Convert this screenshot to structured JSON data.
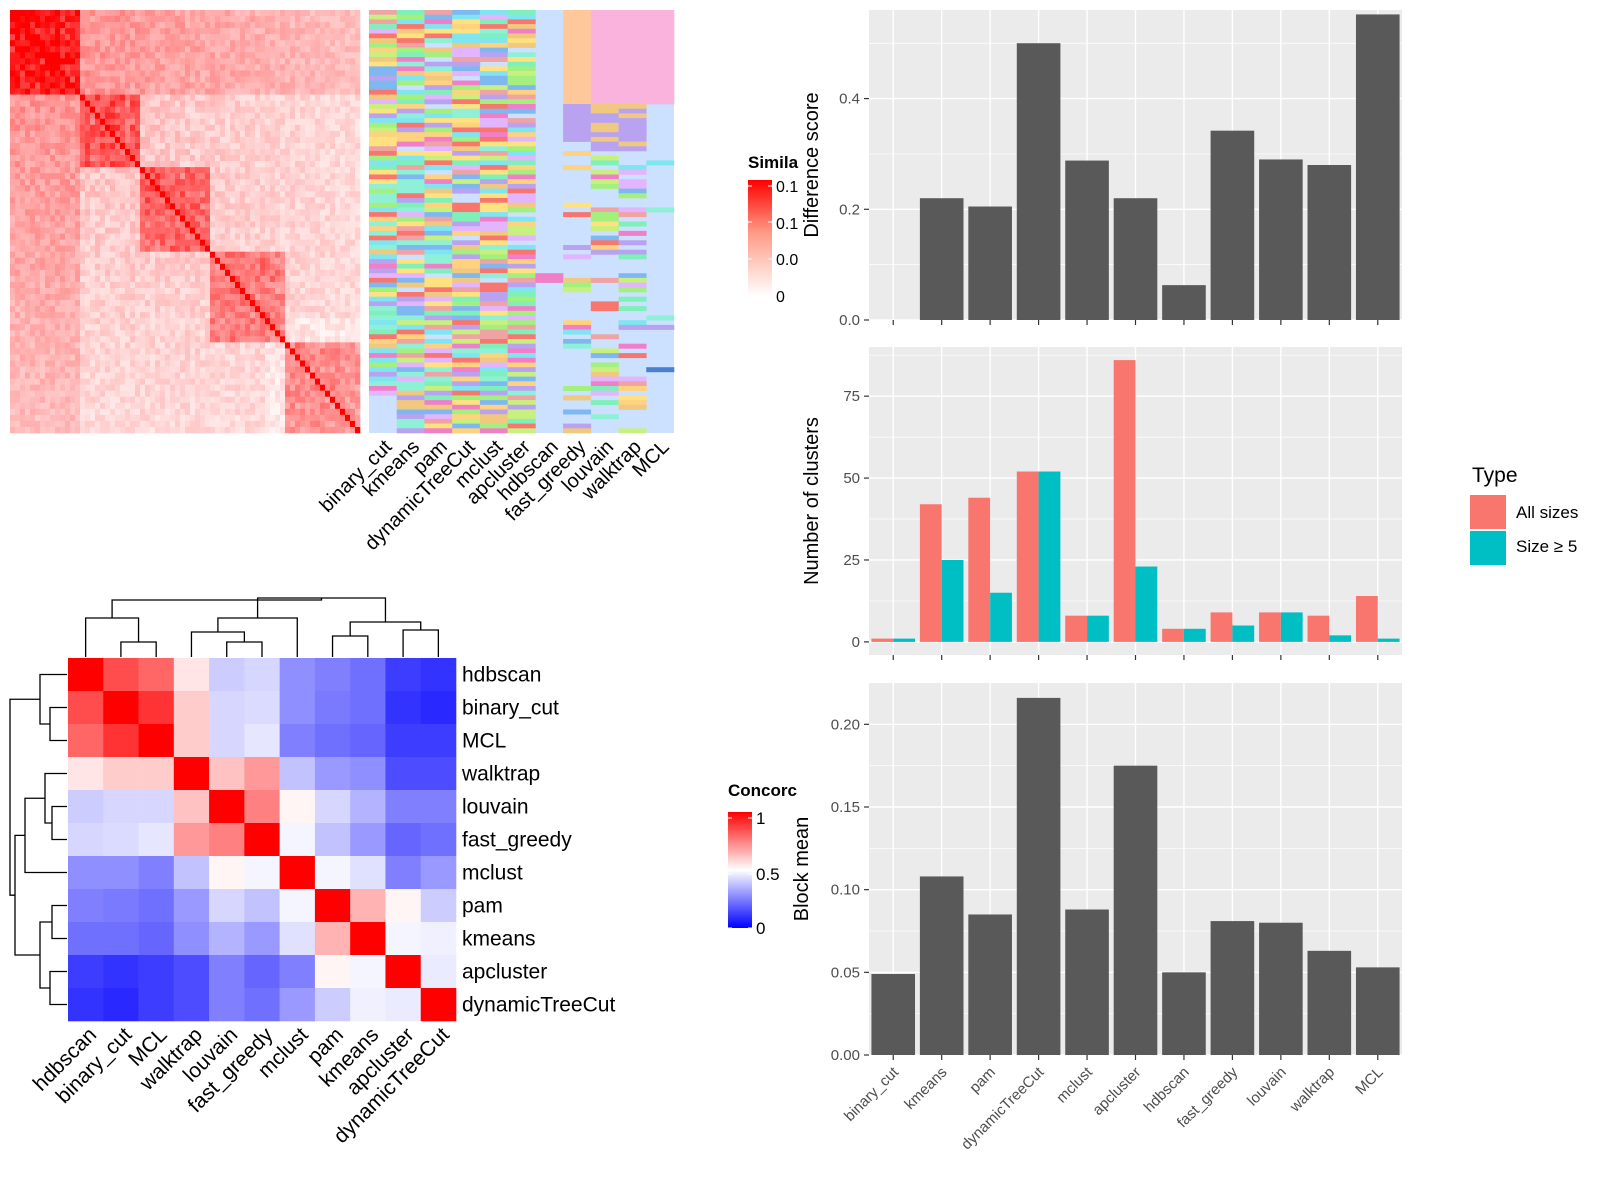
{
  "colors": {
    "panel_bg": "#ebebeb",
    "grid": "#ffffff",
    "bar_dark": "#595959",
    "all_sizes": "#f8766d",
    "size5": "#00bfc4",
    "heat_high": "#ff0000",
    "heat_low": "#ffffff",
    "conc_low": "#0000ff",
    "conc_mid": "#ffffff",
    "conc_high": "#ff0000",
    "anno_bg": "#cce0ff"
  },
  "legends": {
    "similarity_title": "Simila",
    "similarity_ticks": [
      "0.1",
      "0.1",
      "0.0",
      "0"
    ],
    "concordance_title": "Concorc",
    "concordance_ticks": [
      "1",
      "0.5",
      "0"
    ],
    "type_title": "Type"
  },
  "chart_data": [
    {
      "type": "heatmap",
      "panel": "similarity-matrix",
      "title": "",
      "color_scale": {
        "low": "#ffffff",
        "high": "#ff0000"
      },
      "annotation_columns": [
        "binary_cut",
        "kmeans",
        "pam",
        "dynamicTreeCut",
        "mclust",
        "apcluster",
        "hdbscan",
        "fast_greedy",
        "louvain",
        "walktrap",
        "MCL"
      ]
    },
    {
      "type": "heatmap",
      "panel": "concordance",
      "title": "",
      "rows": [
        "hdbscan",
        "binary_cut",
        "MCL",
        "walktrap",
        "louvain",
        "fast_greedy",
        "mclust",
        "pam",
        "kmeans",
        "apcluster",
        "dynamicTreeCut"
      ],
      "columns": [
        "hdbscan",
        "binary_cut",
        "MCL",
        "walktrap",
        "louvain",
        "fast_greedy",
        "mclust",
        "pam",
        "kmeans",
        "apcluster",
        "dynamicTreeCut"
      ],
      "values": [
        [
          1.0,
          0.85,
          0.8,
          0.55,
          0.4,
          0.42,
          0.28,
          0.25,
          0.22,
          0.12,
          0.1
        ],
        [
          0.85,
          1.0,
          0.9,
          0.6,
          0.42,
          0.43,
          0.28,
          0.24,
          0.22,
          0.1,
          0.08
        ],
        [
          0.8,
          0.9,
          1.0,
          0.6,
          0.42,
          0.45,
          0.25,
          0.22,
          0.2,
          0.12,
          0.12
        ],
        [
          0.55,
          0.6,
          0.6,
          1.0,
          0.62,
          0.7,
          0.38,
          0.3,
          0.28,
          0.15,
          0.15
        ],
        [
          0.4,
          0.42,
          0.42,
          0.62,
          1.0,
          0.75,
          0.52,
          0.42,
          0.35,
          0.25,
          0.25
        ],
        [
          0.42,
          0.43,
          0.45,
          0.7,
          0.75,
          1.0,
          0.48,
          0.38,
          0.3,
          0.2,
          0.22
        ],
        [
          0.28,
          0.28,
          0.25,
          0.38,
          0.52,
          0.48,
          1.0,
          0.48,
          0.44,
          0.25,
          0.3
        ],
        [
          0.25,
          0.24,
          0.22,
          0.3,
          0.42,
          0.38,
          0.48,
          1.0,
          0.65,
          0.52,
          0.4
        ],
        [
          0.22,
          0.22,
          0.2,
          0.28,
          0.35,
          0.3,
          0.44,
          0.65,
          1.0,
          0.48,
          0.47
        ],
        [
          0.12,
          0.1,
          0.12,
          0.15,
          0.25,
          0.2,
          0.25,
          0.52,
          0.48,
          1.0,
          0.46
        ],
        [
          0.1,
          0.08,
          0.12,
          0.15,
          0.25,
          0.22,
          0.3,
          0.4,
          0.47,
          0.46,
          1.0
        ]
      ],
      "range": [
        0,
        1
      ]
    },
    {
      "type": "bar",
      "panel": "difference-score",
      "categories": [
        "binary_cut",
        "kmeans",
        "pam",
        "dynamicTreeCut",
        "mclust",
        "apcluster",
        "hdbscan",
        "fast_greedy",
        "louvain",
        "walktrap",
        "MCL"
      ],
      "values": [
        0,
        0.22,
        0.205,
        0.5,
        0.288,
        0.22,
        0.063,
        0.342,
        0.29,
        0.28,
        0.552
      ],
      "ylabel": "Difference score",
      "ylim": [
        0,
        0.56
      ],
      "yticks": [
        0.0,
        0.2,
        0.4
      ],
      "ytick_labels": [
        "0.0",
        "0.2",
        "0.4"
      ],
      "grid": true
    },
    {
      "type": "bar",
      "panel": "number-of-clusters",
      "categories": [
        "binary_cut",
        "kmeans",
        "pam",
        "dynamicTreeCut",
        "mclust",
        "apcluster",
        "hdbscan",
        "fast_greedy",
        "louvain",
        "walktrap",
        "MCL"
      ],
      "series": [
        {
          "name": "All sizes",
          "values": [
            1,
            42,
            44,
            52,
            8,
            86,
            4,
            9,
            9,
            8,
            14
          ]
        },
        {
          "name": "Size ≥ 5",
          "values": [
            1,
            25,
            15,
            52,
            8,
            23,
            4,
            5,
            9,
            2,
            1
          ]
        }
      ],
      "ylabel": "Number of clusters",
      "ylim": [
        -4,
        90
      ],
      "yticks": [
        0,
        25,
        50,
        75
      ],
      "ytick_labels": [
        "0",
        "25",
        "50",
        "75"
      ],
      "legend_title": "Type",
      "legend_position": "right",
      "grid": true
    },
    {
      "type": "bar",
      "panel": "block-mean",
      "categories": [
        "binary_cut",
        "kmeans",
        "pam",
        "dynamicTreeCut",
        "mclust",
        "apcluster",
        "hdbscan",
        "fast_greedy",
        "louvain",
        "walktrap",
        "MCL"
      ],
      "values": [
        0.049,
        0.108,
        0.085,
        0.216,
        0.088,
        0.175,
        0.05,
        0.081,
        0.08,
        0.063,
        0.053
      ],
      "ylabel": "Block mean",
      "ylim": [
        0,
        0.225
      ],
      "yticks": [
        0.0,
        0.05,
        0.1,
        0.15,
        0.2
      ],
      "ytick_labels": [
        "0.00",
        "0.05",
        "0.10",
        "0.15",
        "0.20"
      ],
      "grid": true
    }
  ]
}
